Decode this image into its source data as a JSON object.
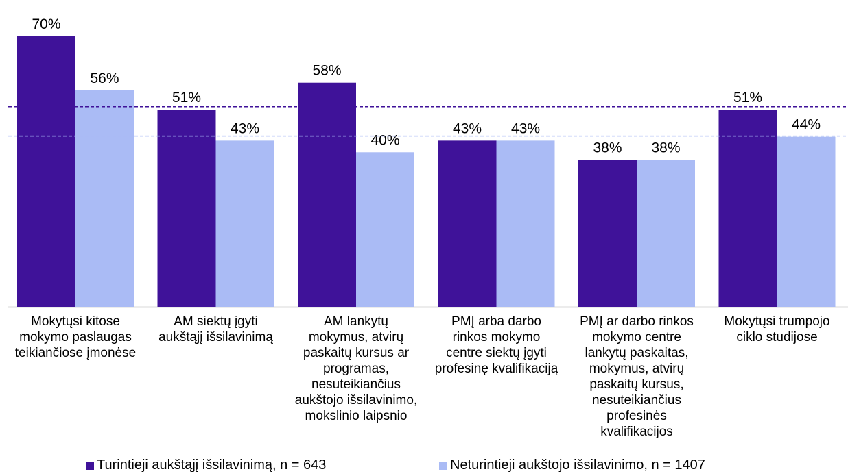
{
  "chart_data": {
    "type": "bar",
    "categories": [
      "Mokytųsi kitose\nmokymo paslaugas\nteikiančiose įmonėse",
      "AM siektų įgyti\naukštąjį išsilavinimą",
      "AM lankytų\nmokymus, atvirų\npaskaitų kursus ar\nprogramas,\nnesuteikiančius\naukštojo išsilavinimo,\nmokslinio laipsnio",
      "PMĮ arba darbo\nrinkos mokymo\ncentre siektų įgyti\nprofesinę kvalifikaciją",
      "PMĮ ar darbo rinkos\nmokymo centre\nlankytų paskaitas,\nmokymus, atvirų\npaskaitų kursus,\nnesuteikiančius\nprofesinės\nkvalifikacijos",
      "Mokytųsi trumpojo\nciklo studijose"
    ],
    "series": [
      {
        "name": "Turintieji aukštąjį išsilavinimą, n = 643",
        "color": "#3f1299",
        "values": [
          70,
          51,
          58,
          43,
          38,
          51
        ],
        "labels": [
          "70%",
          "51%",
          "58%",
          "43%",
          "38%",
          "51%"
        ]
      },
      {
        "name": "Neturintieji aukštojo išsilavinimo, n = 1407",
        "color": "#aabbf5",
        "values": [
          56,
          43,
          40,
          43,
          38,
          44
        ],
        "labels": [
          "56%",
          "43%",
          "40%",
          "43%",
          "38%",
          "44%"
        ]
      }
    ],
    "reference_lines": [
      {
        "value": 51.8,
        "color": "#3f1299",
        "style": "dashed"
      },
      {
        "value": 44.2,
        "color": "#aabbf5",
        "style": "dashed"
      }
    ],
    "ylim": [
      0,
      70
    ],
    "grid": false,
    "legend_position": "bottom"
  }
}
